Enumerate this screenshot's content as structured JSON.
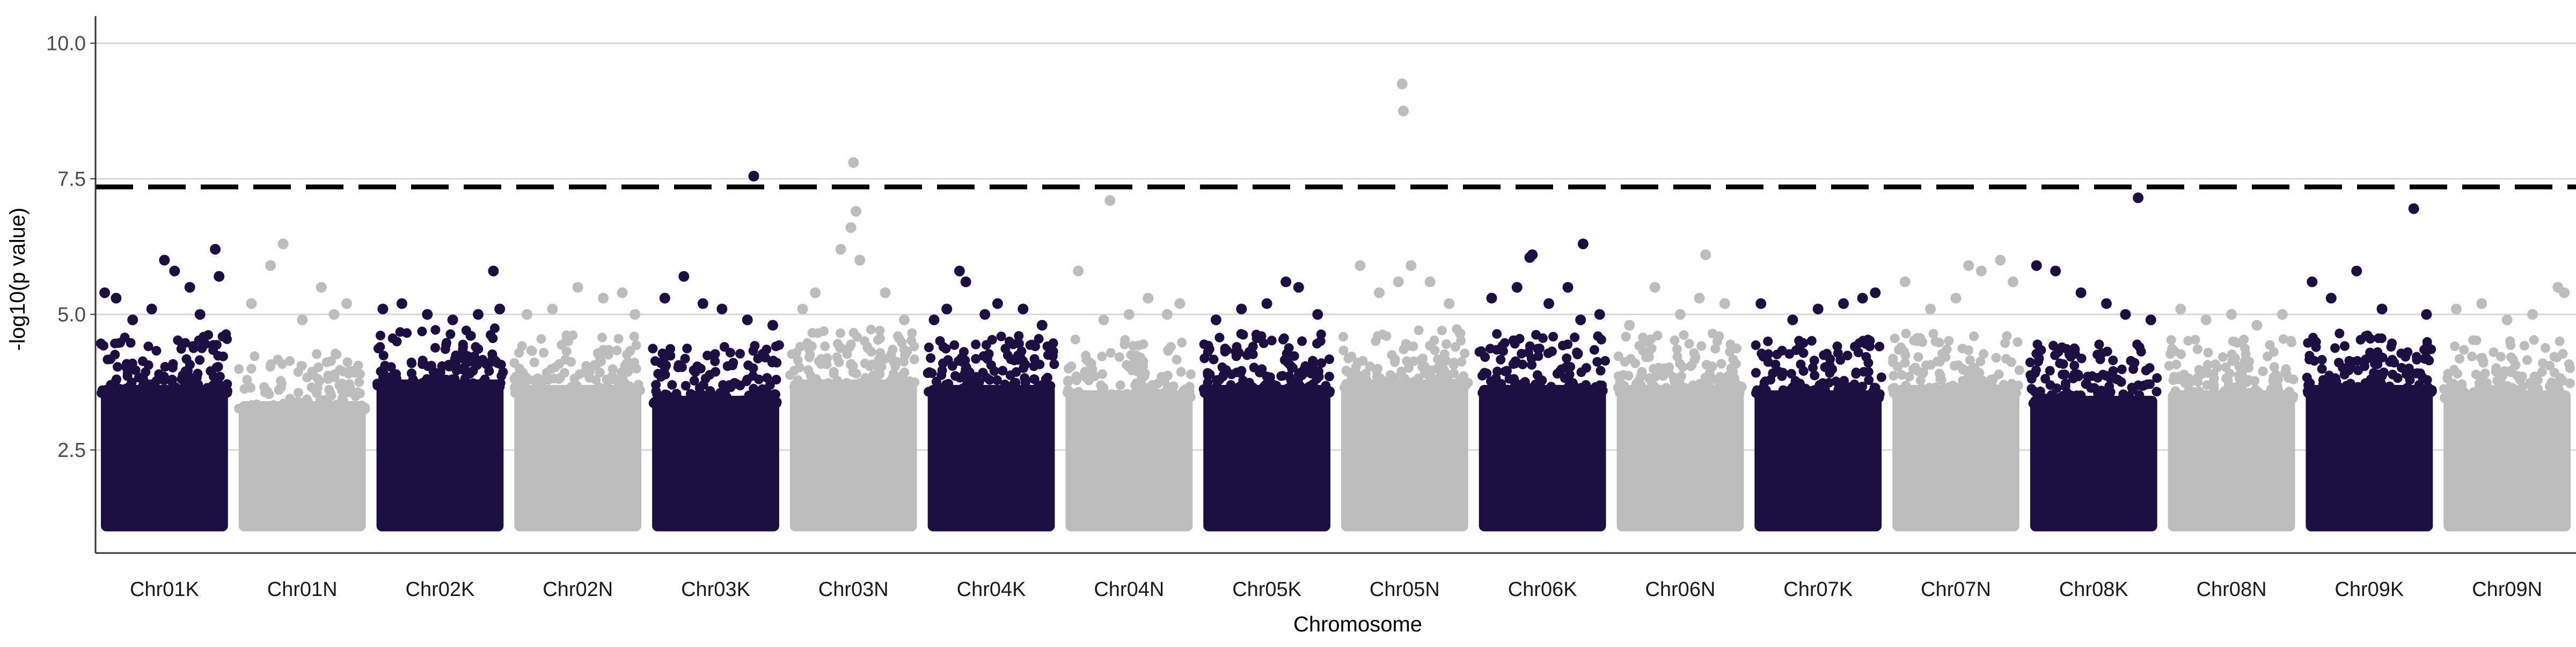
{
  "chart_data": {
    "type": "scatter",
    "title": "",
    "xlabel": "Chromosome",
    "ylabel": "-log10(p value)",
    "ylim": [
      0.6,
      10.5
    ],
    "yticks": [
      2.5,
      5.0,
      7.5,
      10.0
    ],
    "ytick_labels": [
      "2.5",
      "5.0",
      "7.5",
      "10.0"
    ],
    "grid": "horizontal-major",
    "legend": "none",
    "significance_threshold": 7.35,
    "threshold_style": "dashed-black",
    "point_min": 1.0,
    "colors": {
      "odd": "#1c1042",
      "even": "#bdbdbd",
      "grid": "#d9d9d9",
      "axis": "#333333",
      "threshold": "#000000"
    },
    "categories": [
      "Chr01K",
      "Chr01N",
      "Chr02K",
      "Chr02N",
      "Chr03K",
      "Chr03N",
      "Chr04K",
      "Chr04N",
      "Chr05K",
      "Chr05N",
      "Chr06K",
      "Chr06N",
      "Chr07K",
      "Chr07N",
      "Chr08K",
      "Chr08N",
      "Chr09K",
      "Chr09N"
    ],
    "density_ceiling": [
      3.7,
      3.4,
      3.8,
      3.7,
      3.5,
      3.8,
      3.7,
      3.6,
      3.7,
      3.8,
      3.7,
      3.7,
      3.6,
      3.7,
      3.5,
      3.6,
      3.7,
      3.6
    ],
    "top_points": [
      [
        [
          0.03,
          5.4
        ],
        [
          0.12,
          5.3
        ],
        [
          0.25,
          4.9
        ],
        [
          0.4,
          5.1
        ],
        [
          0.5,
          6.0
        ],
        [
          0.58,
          5.8
        ],
        [
          0.7,
          5.5
        ],
        [
          0.78,
          5.0
        ],
        [
          0.9,
          6.2
        ],
        [
          0.93,
          5.7
        ]
      ],
      [
        [
          0.1,
          5.2
        ],
        [
          0.25,
          5.9
        ],
        [
          0.35,
          6.3
        ],
        [
          0.5,
          4.9
        ],
        [
          0.65,
          5.5
        ],
        [
          0.75,
          5.0
        ],
        [
          0.85,
          5.2
        ]
      ],
      [
        [
          0.05,
          5.1
        ],
        [
          0.2,
          5.2
        ],
        [
          0.4,
          5.0
        ],
        [
          0.6,
          4.9
        ],
        [
          0.8,
          5.0
        ],
        [
          0.92,
          5.8
        ],
        [
          0.97,
          5.1
        ]
      ],
      [
        [
          0.1,
          5.0
        ],
        [
          0.3,
          5.1
        ],
        [
          0.5,
          5.5
        ],
        [
          0.7,
          5.3
        ],
        [
          0.85,
          5.4
        ],
        [
          0.95,
          5.0
        ]
      ],
      [
        [
          0.1,
          5.3
        ],
        [
          0.25,
          5.7
        ],
        [
          0.4,
          5.2
        ],
        [
          0.55,
          5.1
        ],
        [
          0.75,
          4.9
        ],
        [
          0.8,
          7.55
        ],
        [
          0.95,
          4.8
        ]
      ],
      [
        [
          0.1,
          5.1
        ],
        [
          0.2,
          5.4
        ],
        [
          0.4,
          6.2
        ],
        [
          0.48,
          6.6
        ],
        [
          0.5,
          7.8
        ],
        [
          0.52,
          6.9
        ],
        [
          0.55,
          6.0
        ],
        [
          0.75,
          5.4
        ],
        [
          0.9,
          4.9
        ]
      ],
      [
        [
          0.05,
          4.9
        ],
        [
          0.15,
          5.1
        ],
        [
          0.25,
          5.8
        ],
        [
          0.3,
          5.6
        ],
        [
          0.45,
          5.0
        ],
        [
          0.55,
          5.2
        ],
        [
          0.75,
          5.1
        ],
        [
          0.9,
          4.8
        ]
      ],
      [
        [
          0.1,
          5.8
        ],
        [
          0.3,
          4.9
        ],
        [
          0.35,
          7.1
        ],
        [
          0.5,
          5.0
        ],
        [
          0.65,
          5.3
        ],
        [
          0.8,
          5.0
        ],
        [
          0.9,
          5.2
        ]
      ],
      [
        [
          0.1,
          4.9
        ],
        [
          0.3,
          5.1
        ],
        [
          0.5,
          5.2
        ],
        [
          0.65,
          5.6
        ],
        [
          0.75,
          5.5
        ],
        [
          0.9,
          5.0
        ]
      ],
      [
        [
          0.15,
          5.9
        ],
        [
          0.3,
          5.4
        ],
        [
          0.45,
          5.6
        ],
        [
          0.48,
          9.25
        ],
        [
          0.49,
          8.75
        ],
        [
          0.55,
          5.9
        ],
        [
          0.7,
          5.6
        ],
        [
          0.85,
          5.2
        ]
      ],
      [
        [
          0.1,
          5.3
        ],
        [
          0.3,
          5.5
        ],
        [
          0.4,
          6.05
        ],
        [
          0.42,
          6.1
        ],
        [
          0.55,
          5.2
        ],
        [
          0.7,
          5.5
        ],
        [
          0.8,
          4.9
        ],
        [
          0.82,
          6.3
        ],
        [
          0.95,
          5.0
        ]
      ],
      [
        [
          0.1,
          4.8
        ],
        [
          0.3,
          5.5
        ],
        [
          0.5,
          5.0
        ],
        [
          0.65,
          5.3
        ],
        [
          0.7,
          6.1
        ],
        [
          0.85,
          5.2
        ]
      ],
      [
        [
          0.05,
          5.2
        ],
        [
          0.3,
          4.9
        ],
        [
          0.5,
          5.1
        ],
        [
          0.7,
          5.2
        ],
        [
          0.85,
          5.3
        ],
        [
          0.95,
          5.4
        ]
      ],
      [
        [
          0.1,
          5.6
        ],
        [
          0.3,
          5.1
        ],
        [
          0.5,
          5.3
        ],
        [
          0.6,
          5.9
        ],
        [
          0.7,
          5.8
        ],
        [
          0.85,
          6.0
        ],
        [
          0.95,
          5.6
        ]
      ],
      [
        [
          0.05,
          5.9
        ],
        [
          0.2,
          5.8
        ],
        [
          0.4,
          5.4
        ],
        [
          0.6,
          5.2
        ],
        [
          0.75,
          5.0
        ],
        [
          0.85,
          7.15
        ],
        [
          0.95,
          4.9
        ]
      ],
      [
        [
          0.1,
          5.1
        ],
        [
          0.3,
          4.9
        ],
        [
          0.5,
          5.0
        ],
        [
          0.7,
          4.8
        ],
        [
          0.9,
          5.0
        ]
      ],
      [
        [
          0.05,
          5.6
        ],
        [
          0.2,
          5.3
        ],
        [
          0.4,
          5.8
        ],
        [
          0.6,
          5.1
        ],
        [
          0.85,
          6.95
        ],
        [
          0.95,
          5.0
        ]
      ],
      [
        [
          0.1,
          5.1
        ],
        [
          0.3,
          5.2
        ],
        [
          0.5,
          4.9
        ],
        [
          0.7,
          5.0
        ],
        [
          0.9,
          5.5
        ],
        [
          0.95,
          5.4
        ]
      ]
    ]
  }
}
